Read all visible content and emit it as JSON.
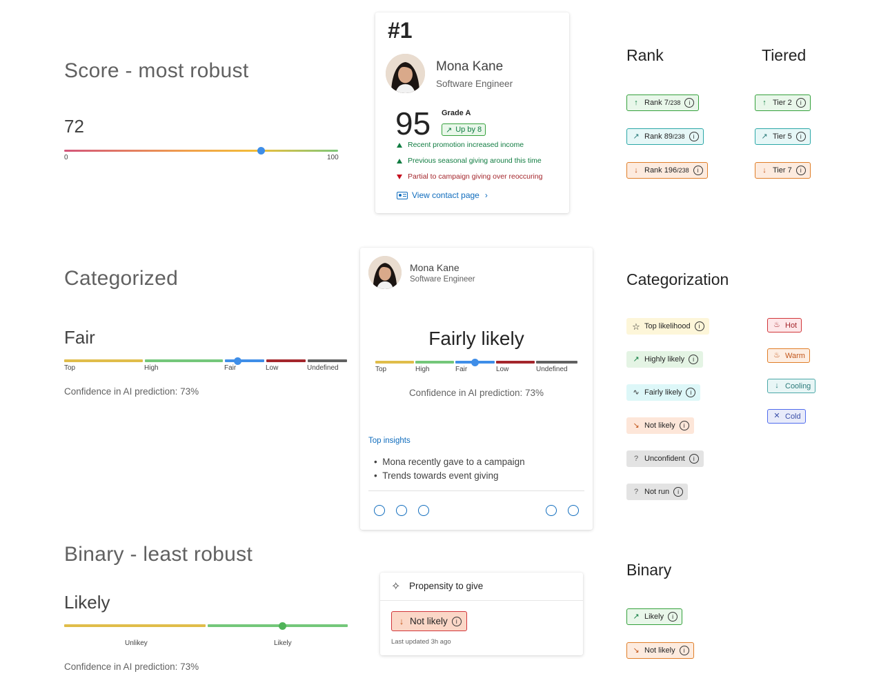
{
  "score": {
    "title": "Score - most robust",
    "value": "72",
    "value_fraction": 0.72,
    "min_label": "0",
    "max_label": "100"
  },
  "contact_card": {
    "rank": "#1",
    "name": "Mona Kane",
    "role": "Software Engineer",
    "score": "95",
    "grade": "Grade A",
    "trend": "Up by 8",
    "insights": [
      {
        "text": "Recent promotion increased income",
        "direction": "up"
      },
      {
        "text": "Previous seasonal giving around this time",
        "direction": "up"
      },
      {
        "text": "Partial to campaign giving over reoccuring",
        "direction": "down"
      }
    ],
    "link": "View contact page"
  },
  "rank_section": {
    "title": "Rank",
    "badges": [
      {
        "label": "Rank 7",
        "suffix": "/238",
        "direction": "up"
      },
      {
        "label": "Rank 89",
        "suffix": "/238",
        "direction": "trend"
      },
      {
        "label": "Rank 196",
        "suffix": "/238",
        "direction": "down"
      }
    ]
  },
  "tiered_section": {
    "title": "Tiered",
    "badges": [
      {
        "label": "Tier 2",
        "direction": "up"
      },
      {
        "label": "Tier 5",
        "direction": "trend"
      },
      {
        "label": "Tier 7",
        "direction": "down"
      }
    ]
  },
  "categorized": {
    "title": "Categorized",
    "value": "Fair",
    "scale": [
      "Top",
      "High",
      "Fair",
      "Low",
      "Undefined"
    ],
    "confidence": "Confidence in AI prediction: 73%"
  },
  "fair_card": {
    "name": "Mona Kane",
    "role": "Software Engineer",
    "value": "Fairly likely",
    "scale": [
      "Top",
      "High",
      "Fair",
      "Low",
      "Undefined"
    ],
    "confidence": "Confidence in AI prediction: 73%",
    "insights_header": "Top insights",
    "insights": [
      "Mona recently gave to a campaign",
      "Trends towards event giving"
    ]
  },
  "categorization": {
    "title": "Categorization",
    "likelihood": [
      {
        "label": "Top likelihood",
        "icon": "star-icon"
      },
      {
        "label": "Highly likely",
        "icon": "trend-up-icon"
      },
      {
        "label": "Fairly likely",
        "icon": "pulse-icon"
      },
      {
        "label": "Not likely",
        "icon": "trend-down-icon"
      },
      {
        "label": "Unconfident",
        "icon": "question-icon"
      },
      {
        "label": "Not run",
        "icon": "question-icon"
      }
    ],
    "temperature": [
      {
        "label": "Hot",
        "icon": "fire-icon"
      },
      {
        "label": "Warm",
        "icon": "flame-icon"
      },
      {
        "label": "Cooling",
        "icon": "arrow-down-icon"
      },
      {
        "label": "Cold",
        "icon": "snowflake-icon"
      }
    ]
  },
  "binary": {
    "title": "Binary - least robust",
    "value": "Likely",
    "scale": [
      "Unlikey",
      "Likely"
    ],
    "confidence": "Confidence in AI prediction: 73%"
  },
  "propensity_card": {
    "title": "Propensity to give",
    "badge": "Not likely",
    "updated": "Last updated 3h ago"
  },
  "binary_section": {
    "title": "Binary",
    "badges": [
      {
        "label": "Likely",
        "direction": "trend"
      },
      {
        "label": "Not likely",
        "direction": "down"
      }
    ]
  }
}
